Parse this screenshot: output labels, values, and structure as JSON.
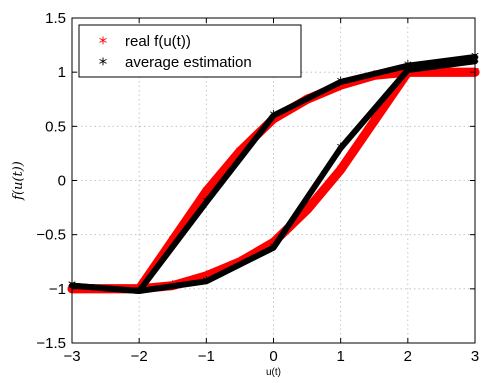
{
  "chart_data": {
    "type": "line",
    "title": "",
    "xlabel": "u(t)",
    "ylabel": "f(u(t))",
    "xlim": [
      -3,
      3
    ],
    "ylim": [
      -1.5,
      1.5
    ],
    "xticks": [
      -3,
      -2,
      -1,
      0,
      1,
      2,
      3
    ],
    "yticks": [
      -1.5,
      -1,
      -0.5,
      0,
      0.5,
      1,
      1.5
    ],
    "xtick_labels": [
      "−3",
      "−2",
      "−1",
      "0",
      "1",
      "2",
      "3"
    ],
    "ytick_labels": [
      "−1.5",
      "−1",
      "−0.5",
      "0",
      "0.5",
      "1",
      "1.5"
    ],
    "grid": true,
    "legend_position": "top-left",
    "legend_marker": "*",
    "series": [
      {
        "name": "real f(u(t))",
        "color": "#ff0000",
        "branches": [
          {
            "x": [
              -3,
              -2,
              -1.5,
              -1,
              -0.5,
              0,
              0.5,
              1,
              1.5,
              2,
              3
            ],
            "y": [
              -1,
              -1,
              -0.55,
              -0.1,
              0.27,
              0.57,
              0.75,
              0.88,
              0.97,
              1.0,
              1.0
            ]
          },
          {
            "x": [
              -3,
              -2,
              -1.5,
              -1,
              -0.5,
              0,
              0.5,
              1,
              1.5,
              2,
              3
            ],
            "y": [
              -1,
              -1,
              -0.97,
              -0.88,
              -0.75,
              -0.57,
              -0.27,
              0.1,
              0.55,
              1.0,
              1.0
            ]
          }
        ]
      },
      {
        "name": "average estimation",
        "color": "#000000",
        "branches": [
          {
            "x": [
              -3,
              -2,
              -1,
              0,
              1,
              2,
              3
            ],
            "y": [
              -0.97,
              -1.02,
              -0.2,
              0.6,
              0.91,
              1.06,
              1.14
            ]
          },
          {
            "x": [
              -3,
              -2,
              -1,
              0,
              1,
              2,
              3
            ],
            "y": [
              -0.97,
              -1.02,
              -0.93,
              -0.62,
              0.3,
              1.02,
              1.1
            ]
          }
        ]
      }
    ]
  }
}
